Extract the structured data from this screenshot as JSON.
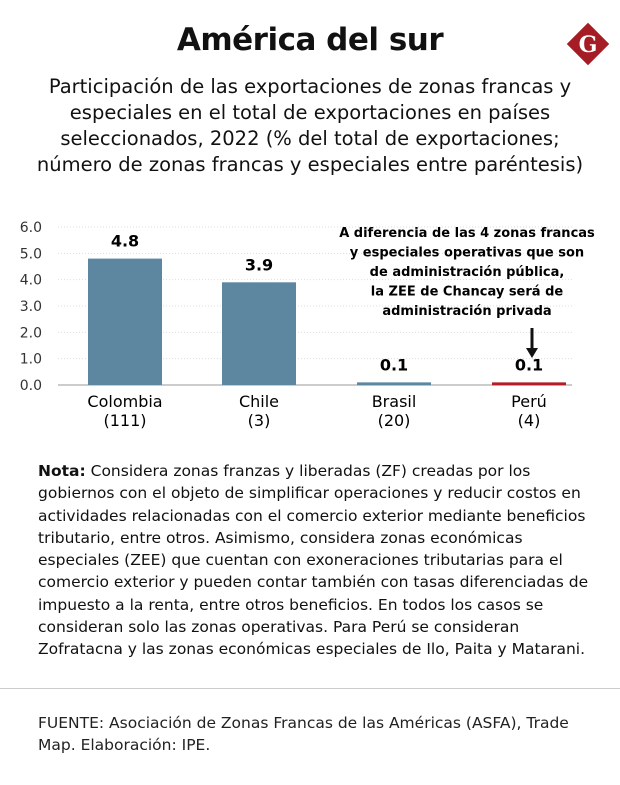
{
  "title": "América del sur",
  "logo_text": "G",
  "subtitle": "Participación de las exportaciones de zonas francas y especiales en el total de exportaciones en países seleccionados, 2022 (% del total de exportaciones; número de zonas francas y especiales entre paréntesis)",
  "chart_data": {
    "type": "bar",
    "categories": [
      "Colombia",
      "Chile",
      "Brasil",
      "Perú"
    ],
    "category_counts": [
      "(111)",
      "(3)",
      "(20)",
      "(4)"
    ],
    "values": [
      4.8,
      3.9,
      0.1,
      0.1
    ],
    "value_labels": [
      "4.8",
      "3.9",
      "0.1",
      "0.1"
    ],
    "bar_colors": [
      "#5d87a1",
      "#5d87a1",
      "#5d87a1",
      "#b31d27"
    ],
    "ylim": [
      0,
      6
    ],
    "yticks": [
      "0.0",
      "1.0",
      "2.0",
      "3.0",
      "4.0",
      "5.0",
      "6.0"
    ],
    "grid": true,
    "annotation": [
      "A diferencia de las 4 zonas francas",
      "y especiales operativas que son",
      "de administración pública,",
      "la ZEE de Chancay será de",
      "administración privada"
    ]
  },
  "note": {
    "label": "Nota:",
    "text": " Considera zonas franzas y liberadas (ZF) creadas por los gobiernos con el objeto de simplificar operaciones y reducir costos en actividades relacionadas con el comercio exterior mediante beneficios tributario, entre otros. Asimismo, considera zonas económicas especiales (ZEE) que cuentan con exoneraciones tributarias para el comercio exterior y pueden contar también con tasas diferenciadas de impuesto a la renta, entre otros beneficios. En todos los casos se consideran solo las zonas operativas. Para Perú se consideran Zofratacna y las zonas económicas especiales de Ilo, Paita y Matarani."
  },
  "source": "FUENTE: Asociación de Zonas Francas de las Américas (ASFA), Trade Map. Elaboración: IPE."
}
